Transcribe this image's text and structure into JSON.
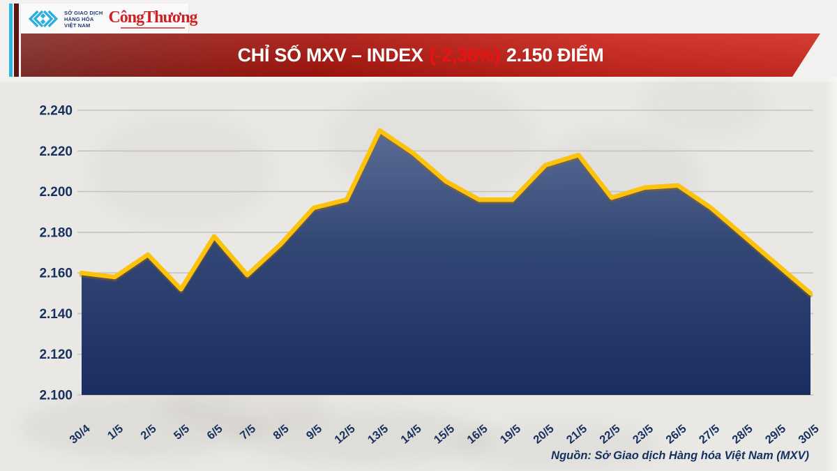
{
  "header": {
    "logo": {
      "org_lines": [
        "SỞ GIAO DỊCH",
        "HÀNG HÓA",
        "VIỆT NAM"
      ],
      "newspaper": "CôngThương"
    },
    "banner": {
      "title_prefix": "CHỈ SỐ MXV – INDEX",
      "title_change": "(-2,36%)",
      "title_suffix": "2.150 ĐIỂM",
      "change_color": "#ed1212"
    }
  },
  "chart_data": {
    "type": "area",
    "title": "CHỈ SỐ MXV – INDEX (-2,36%) 2.150 ĐIỂM",
    "x": [
      "30/4",
      "1/5",
      "2/5",
      "5/5",
      "6/5",
      "7/5",
      "8/5",
      "9/5",
      "12/5",
      "13/5",
      "14/5",
      "15/5",
      "16/5",
      "19/5",
      "20/5",
      "21/5",
      "22/5",
      "23/5",
      "26/5",
      "27/5",
      "28/5",
      "29/5",
      "30/5"
    ],
    "values": [
      2160,
      2158,
      2169,
      2152,
      2178,
      2159,
      2174,
      2192,
      2196,
      2230,
      2219,
      2205,
      2196,
      2196,
      2213,
      2218,
      2197,
      2202,
      2203,
      2192,
      2178,
      2164,
      2150
    ],
    "y_tick_labels": [
      "2.240",
      "2.220",
      "2.200",
      "2.180",
      "2.160",
      "2.140",
      "2.120",
      "2.100"
    ],
    "y_tick_values": [
      2240,
      2220,
      2200,
      2180,
      2160,
      2140,
      2120,
      2100
    ],
    "ylim": [
      2100,
      2240
    ],
    "xlabel": "",
    "ylabel": "",
    "grid": true,
    "legend": "none",
    "style": {
      "line_color": "#fcc30c",
      "line_shadow": "rgba(168,104,0,0.40)",
      "fill_top": "#5e7099",
      "fill_mid": "#2d4272",
      "fill_bottom": "#13255a",
      "grid_color": "#c5c3c0",
      "label_color": "#17305e",
      "watermark_color": "#8a8272"
    }
  },
  "footer": {
    "source": "Nguồn: Sở Giao dịch Hàng hóa Việt Nam (MXV)"
  }
}
